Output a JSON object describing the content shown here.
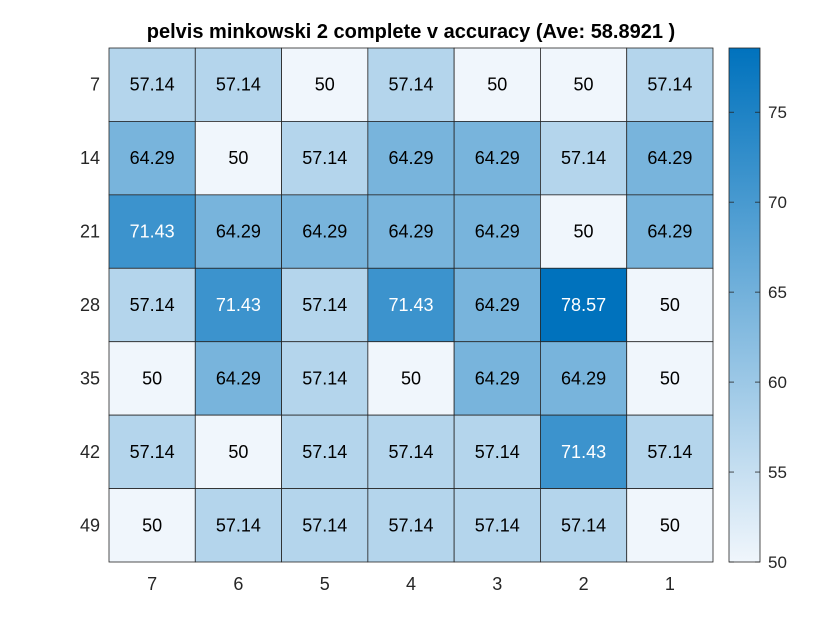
{
  "chart_data": {
    "type": "heatmap",
    "title": "pelvis minkowski 2 complete v accuracy (Ave:  58.8921 )",
    "x_labels": [
      "7",
      "6",
      "5",
      "4",
      "3",
      "2",
      "1"
    ],
    "y_labels": [
      "7",
      "14",
      "21",
      "28",
      "35",
      "42",
      "49"
    ],
    "values": [
      [
        57.14,
        57.14,
        50,
        57.14,
        50,
        50,
        57.14
      ],
      [
        64.29,
        50,
        57.14,
        64.29,
        64.29,
        57.14,
        64.29
      ],
      [
        71.43,
        64.29,
        64.29,
        64.29,
        64.29,
        50,
        64.29
      ],
      [
        57.14,
        71.43,
        57.14,
        71.43,
        64.29,
        78.57,
        50
      ],
      [
        50,
        64.29,
        57.14,
        50,
        64.29,
        64.29,
        50
      ],
      [
        57.14,
        50,
        57.14,
        57.14,
        57.14,
        71.43,
        57.14
      ],
      [
        50,
        57.14,
        57.14,
        57.14,
        57.14,
        57.14,
        50
      ]
    ],
    "value_labels": [
      [
        "57.14",
        "57.14",
        "50",
        "57.14",
        "50",
        "50",
        "57.14"
      ],
      [
        "64.29",
        "50",
        "57.14",
        "64.29",
        "64.29",
        "57.14",
        "64.29"
      ],
      [
        "71.43",
        "64.29",
        "64.29",
        "64.29",
        "64.29",
        "50",
        "64.29"
      ],
      [
        "57.14",
        "71.43",
        "57.14",
        "71.43",
        "64.29",
        "78.57",
        "50"
      ],
      [
        "50",
        "64.29",
        "57.14",
        "50",
        "64.29",
        "64.29",
        "50"
      ],
      [
        "57.14",
        "50",
        "57.14",
        "57.14",
        "57.14",
        "71.43",
        "57.14"
      ],
      [
        "50",
        "57.14",
        "57.14",
        "57.14",
        "57.14",
        "57.14",
        "50"
      ]
    ],
    "colorbar": {
      "range": [
        50,
        78.57
      ],
      "ticks": [
        50,
        55,
        60,
        65,
        70,
        75
      ],
      "tick_labels": [
        "50",
        "55",
        "60",
        "65",
        "70",
        "75"
      ],
      "colormap": [
        "#f0f6fc",
        "#0072bd"
      ]
    },
    "grid": true,
    "colors": {
      "low": "#f0f6fc",
      "high": "#0072bd",
      "grid_line": "#262626",
      "text_dark": "#000000",
      "text_light": "#ffffff"
    }
  }
}
